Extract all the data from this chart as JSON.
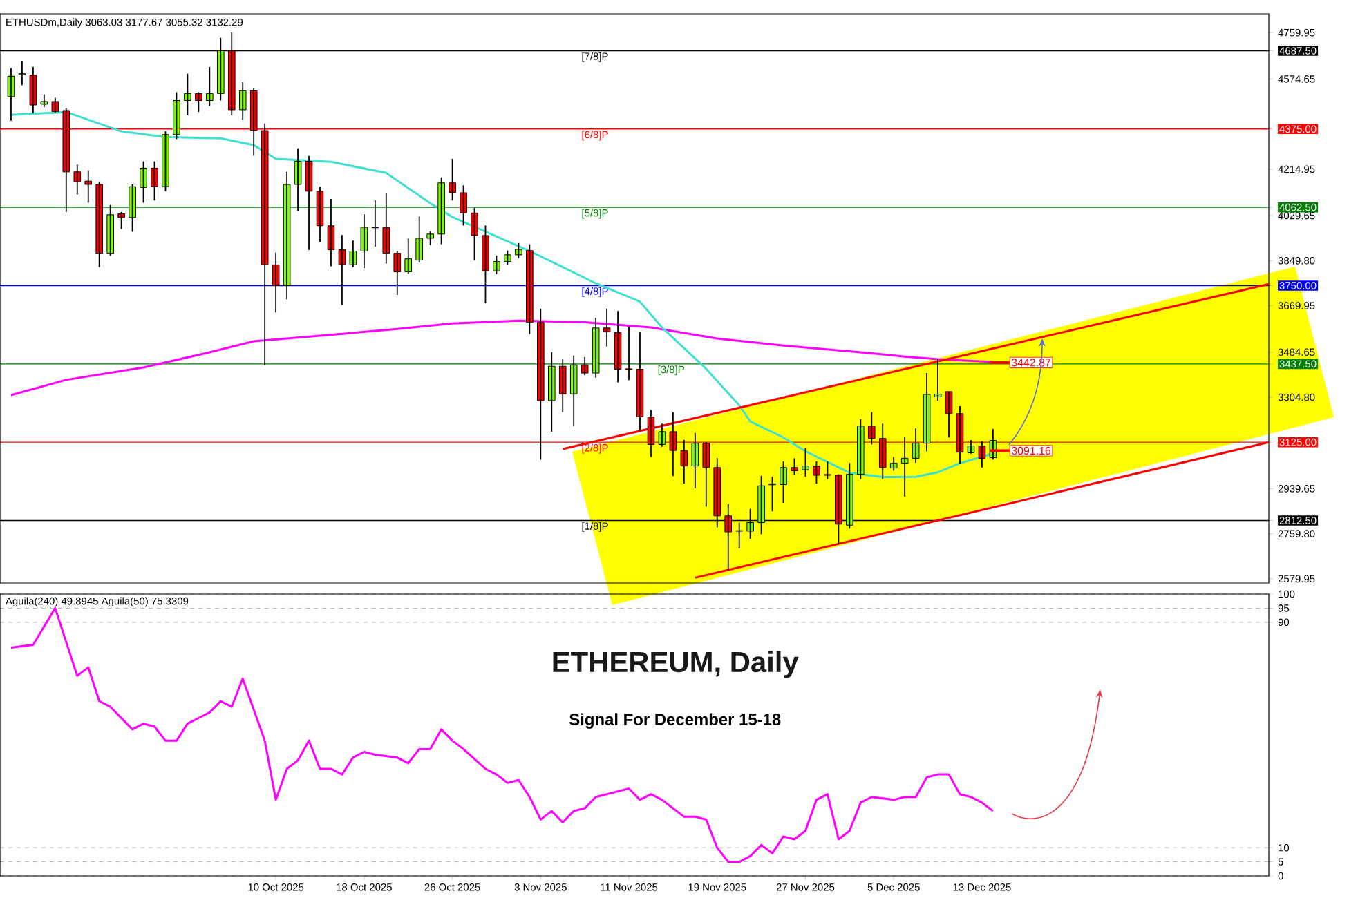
{
  "chart_data": [
    {
      "type": "candlestick",
      "annotations": [
        "ETHUSDm,Daily  3063.03 3177.67 3055.32 3132.29",
        {
          "text": "3442.87",
          "x": "2025-12-14",
          "y": 3442.87
        },
        {
          "text": "3091.16",
          "x": "2025-12-14",
          "y": 3091.16
        }
      ],
      "x": [
        "2025-09-16",
        "2025-09-17",
        "2025-09-18",
        "2025-09-19",
        "2025-09-20",
        "2025-09-21",
        "2025-09-22",
        "2025-09-23",
        "2025-09-24",
        "2025-09-25",
        "2025-09-26",
        "2025-09-27",
        "2025-09-28",
        "2025-09-29",
        "2025-09-30",
        "2025-10-01",
        "2025-10-02",
        "2025-10-03",
        "2025-10-04",
        "2025-10-05",
        "2025-10-06",
        "2025-10-07",
        "2025-10-08",
        "2025-10-09",
        "2025-10-10",
        "2025-10-11",
        "2025-10-12",
        "2025-10-13",
        "2025-10-14",
        "2025-10-15",
        "2025-10-16",
        "2025-10-17",
        "2025-10-18",
        "2025-10-19",
        "2025-10-20",
        "2025-10-21",
        "2025-10-22",
        "2025-10-23",
        "2025-10-24",
        "2025-10-25",
        "2025-10-26",
        "2025-10-27",
        "2025-10-28",
        "2025-10-29",
        "2025-10-30",
        "2025-10-31",
        "2025-11-01",
        "2025-11-02",
        "2025-11-03",
        "2025-11-04",
        "2025-11-05",
        "2025-11-06",
        "2025-11-07",
        "2025-11-08",
        "2025-11-09",
        "2025-11-10",
        "2025-11-11",
        "2025-11-12",
        "2025-11-13",
        "2025-11-14",
        "2025-11-15",
        "2025-11-16",
        "2025-11-17",
        "2025-11-18",
        "2025-11-19",
        "2025-11-20",
        "2025-11-21",
        "2025-11-22",
        "2025-11-23",
        "2025-11-24",
        "2025-11-25",
        "2025-11-26",
        "2025-11-27",
        "2025-11-28",
        "2025-11-29",
        "2025-11-30",
        "2025-12-01",
        "2025-12-02",
        "2025-12-03",
        "2025-12-04",
        "2025-12-05",
        "2025-12-06",
        "2025-12-07",
        "2025-12-08",
        "2025-12-09",
        "2025-12-10",
        "2025-12-11",
        "2025-12-12",
        "2025-12-13",
        "2025-12-14"
      ],
      "ohlc": [
        [
          4504,
          4618,
          4408,
          4586
        ],
        [
          4592,
          4647,
          4550,
          4596
        ],
        [
          4590,
          4623,
          4439,
          4471
        ],
        [
          4474,
          4513,
          4463,
          4485
        ],
        [
          4485,
          4500,
          4439,
          4445
        ],
        [
          4449,
          4458,
          4044,
          4204
        ],
        [
          4204,
          4233,
          4114,
          4164
        ],
        [
          4167,
          4210,
          4081,
          4154
        ],
        [
          4154,
          4163,
          3824,
          3879
        ],
        [
          3879,
          4072,
          3869,
          4033
        ],
        [
          4037,
          4044,
          3976,
          4022
        ],
        [
          4022,
          4154,
          3965,
          4145
        ],
        [
          4142,
          4246,
          4081,
          4219
        ],
        [
          4219,
          4246,
          4090,
          4145
        ],
        [
          4145,
          4366,
          4127,
          4353
        ],
        [
          4353,
          4522,
          4335,
          4489
        ],
        [
          4489,
          4596,
          4430,
          4517
        ],
        [
          4517,
          4522,
          4443,
          4489
        ],
        [
          4489,
          4623,
          4467,
          4517
        ],
        [
          4517,
          4739,
          4489,
          4688
        ],
        [
          4688,
          4761,
          4430,
          4452
        ],
        [
          4452,
          4563,
          4412,
          4528
        ],
        [
          4528,
          4537,
          4268,
          4369
        ],
        [
          4369,
          4397,
          3432,
          3833
        ],
        [
          3833,
          3882,
          3643,
          3750
        ],
        [
          3750,
          4204,
          3695,
          4154
        ],
        [
          4154,
          4298,
          4048,
          4246
        ],
        [
          4246,
          4268,
          3893,
          4127
        ],
        [
          4127,
          4145,
          3925,
          3989
        ],
        [
          3989,
          4096,
          3827,
          3893
        ],
        [
          3893,
          3952,
          3673,
          3833
        ],
        [
          3833,
          3930,
          3824,
          3888
        ],
        [
          3888,
          4035,
          3820,
          3983
        ],
        [
          3983,
          4090,
          3906,
          3981
        ],
        [
          3983,
          4118,
          3838,
          3879
        ],
        [
          3879,
          3888,
          3713,
          3805
        ],
        [
          3805,
          3938,
          3796,
          3857
        ],
        [
          3852,
          4026,
          3842,
          3939
        ],
        [
          3939,
          3967,
          3912,
          3956
        ],
        [
          3956,
          4182,
          3915,
          4160
        ],
        [
          4160,
          4256,
          4090,
          4121
        ],
        [
          4121,
          4150,
          3990,
          4040
        ],
        [
          4040,
          4060,
          3851,
          3950
        ],
        [
          3950,
          3990,
          3680,
          3809
        ],
        [
          3809,
          3870,
          3796,
          3846
        ],
        [
          3846,
          3890,
          3833,
          3873
        ],
        [
          3873,
          3920,
          3860,
          3895
        ],
        [
          3890,
          3915,
          3557,
          3603
        ],
        [
          3603,
          3658,
          3055,
          3291
        ],
        [
          3291,
          3484,
          3167,
          3428
        ],
        [
          3428,
          3456,
          3245,
          3318
        ],
        [
          3318,
          3471,
          3190,
          3434
        ],
        [
          3434,
          3465,
          3392,
          3401
        ],
        [
          3401,
          3621,
          3383,
          3581
        ],
        [
          3581,
          3658,
          3507,
          3566
        ],
        [
          3563,
          3649,
          3364,
          3416
        ],
        [
          3418,
          3585,
          3373,
          3414
        ],
        [
          3416,
          3566,
          3171,
          3226
        ],
        [
          3226,
          3254,
          3066,
          3116
        ],
        [
          3116,
          3199,
          3107,
          3167
        ],
        [
          3167,
          3245,
          2990,
          3092
        ],
        [
          3092,
          3134,
          2960,
          3030
        ],
        [
          3030,
          3162,
          2941,
          3121
        ],
        [
          3121,
          3125,
          2868,
          3024
        ],
        [
          3024,
          3061,
          2785,
          2831
        ],
        [
          2831,
          2877,
          2614,
          2767
        ],
        [
          2772,
          2804,
          2702,
          2770
        ],
        [
          2770,
          2859,
          2739,
          2804
        ],
        [
          2804,
          2991,
          2758,
          2951
        ],
        [
          2955,
          2987,
          2849,
          2959
        ],
        [
          2956,
          3048,
          2883,
          3024
        ],
        [
          3024,
          3061,
          2993,
          3011
        ],
        [
          3015,
          3103,
          2987,
          3030
        ],
        [
          3030,
          3048,
          2960,
          2993
        ],
        [
          2996,
          3048,
          2978,
          2993
        ],
        [
          2993,
          2997,
          2717,
          2798
        ],
        [
          2794,
          3042,
          2780,
          2997
        ],
        [
          2997,
          3217,
          2978,
          3190
        ],
        [
          3190,
          3245,
          3116,
          3140
        ],
        [
          3140,
          3199,
          2978,
          3024
        ],
        [
          3022,
          3066,
          3011,
          3041
        ],
        [
          3041,
          3147,
          2908,
          3061
        ],
        [
          3061,
          3180,
          3043,
          3121
        ],
        [
          3121,
          3401,
          3088,
          3316
        ],
        [
          3306,
          3456,
          3291,
          3317
        ],
        [
          3327,
          3327,
          3144,
          3239
        ],
        [
          3239,
          3269,
          3037,
          3085
        ],
        [
          3083,
          3134,
          3079,
          3110
        ],
        [
          3110,
          3129,
          3024,
          3061
        ],
        [
          3063.03,
          3177.67,
          3055.32,
          3132.29
        ]
      ],
      "colors": [
        "#7cfc00",
        "#7cfc00",
        "#ff0000",
        "#7cfc00",
        "#ff0000",
        "#ff0000",
        "#ff0000",
        "#ff0000",
        "#ff0000",
        "#7cfc00",
        "#ff0000",
        "#7cfc00",
        "#7cfc00",
        "#ff0000",
        "#7cfc00",
        "#7cfc00",
        "#7cfc00",
        "#ff0000",
        "#7cfc00",
        "#7cfc00",
        "#ff0000",
        "#7cfc00",
        "#ff0000",
        "#ff0000",
        "#ff0000",
        "#7cfc00",
        "#7cfc00",
        "#ff0000",
        "#ff0000",
        "#ff0000",
        "#ff0000",
        "#7cfc00",
        "#7cfc00",
        "#ff0000",
        "#ff0000",
        "#ff0000",
        "#7cfc00",
        "#7cfc00",
        "#7cfc00",
        "#7cfc00",
        "#ff0000",
        "#ff0000",
        "#ff0000",
        "#ff0000",
        "#7cfc00",
        "#7cfc00",
        "#7cfc00",
        "#ff0000",
        "#ff0000",
        "#7cfc00",
        "#ff0000",
        "#7cfc00",
        "#ff0000",
        "#7cfc00",
        "#ff0000",
        "#ff0000",
        "#ff0000",
        "#ff0000",
        "#ff0000",
        "#7cfc00",
        "#ff0000",
        "#ff0000",
        "#7cfc00",
        "#ff0000",
        "#ff0000",
        "#ff0000",
        "#ff0000",
        "#7cfc00",
        "#7cfc00",
        "#7cfc00",
        "#7cfc00",
        "#ff0000",
        "#7cfc00",
        "#ff0000",
        "#ff0000",
        "#ff0000",
        "#7cfc00",
        "#7cfc00",
        "#ff0000",
        "#ff0000",
        "#7cfc00",
        "#7cfc00",
        "#7cfc00",
        "#7cfc00",
        "#7cfc00",
        "#ff0000",
        "#ff0000",
        "#7cfc00",
        "#ff0000",
        "#7cfc00"
      ],
      "series": [
        {
          "type": "line",
          "color": "#ff00ff",
          "x": [
            "2025-09-16",
            "2025-09-21",
            "2025-09-28",
            "2025-10-04",
            "2025-10-08",
            "2025-10-14",
            "2025-10-21",
            "2025-10-26",
            "2025-11-01",
            "2025-11-07",
            "2025-11-13",
            "2025-11-19",
            "2025-11-25",
            "2025-12-02",
            "2025-12-06",
            "2025-12-09",
            "2025-12-14"
          ],
          "values": [
            3313,
            3374,
            3423,
            3484,
            3528,
            3550,
            3577,
            3599,
            3610,
            3604,
            3583,
            3539,
            3511,
            3484,
            3467,
            3456,
            3445
          ]
        },
        {
          "type": "line",
          "color": "#40e0d0",
          "x": [
            "2025-09-16",
            "2025-09-21",
            "2025-09-26",
            "2025-09-30",
            "2025-10-05",
            "2025-10-08",
            "2025-10-10",
            "2025-10-15",
            "2025-10-20",
            "2025-10-24",
            "2025-10-26",
            "2025-11-02",
            "2025-11-05",
            "2025-11-08",
            "2025-11-12",
            "2025-11-14",
            "2025-11-18",
            "2025-11-21",
            "2025-11-22",
            "2025-11-25",
            "2025-11-27",
            "2025-12-01",
            "2025-12-04",
            "2025-12-07",
            "2025-12-09",
            "2025-12-11",
            "2025-12-14"
          ],
          "values": [
            4432,
            4443,
            4366,
            4343,
            4338,
            4311,
            4256,
            4244,
            4200,
            4079,
            4024,
            3888,
            3824,
            3759,
            3686,
            3583,
            3418,
            3272,
            3208,
            3144,
            3089,
            3003,
            2986,
            2987,
            3005,
            3041,
            3080
          ]
        },
        {
          "type": "line",
          "color": "#ff0000",
          "x": [
            "2025-11-05",
            "2026-01-08"
          ],
          "values": [
            3098,
            3756
          ]
        },
        {
          "type": "line",
          "color": "#ff0000",
          "x": [
            "2025-11-17",
            "2026-01-08"
          ],
          "values": [
            2584,
            3125
          ]
        }
      ],
      "xlim": [
        "2025-09-15",
        "2026-01-08"
      ],
      "ylim": [
        2563,
        4835
      ],
      "yticks": [
        2579.95,
        {
          "value": 2759.8,
          "label": "2759.80"
        },
        {
          "value": 2812.5,
          "label": "2812.50"
        },
        2939.65,
        {
          "value": 3125,
          "label": "3125.00"
        },
        {
          "value": 3304.8,
          "label": "3304.80"
        },
        {
          "value": 3437.5,
          "label": "3437.50"
        },
        3484.65,
        3669.95,
        {
          "value": 3750,
          "label": "3750.00"
        },
        {
          "value": 3849.8,
          "label": "3849.80"
        },
        4029.65,
        {
          "value": 4062.5,
          "label": "4062.50"
        },
        4214.95,
        {
          "value": 4375,
          "label": "4375.00"
        },
        4574.65,
        {
          "value": 4687.5,
          "label": "4687.50"
        },
        4759.95
      ],
      "ref_lines": [
        {
          "axis": "y",
          "value": 4687.5,
          "label": "[7/8]P",
          "color": "#000000"
        },
        {
          "axis": "y",
          "value": 4375,
          "label": "[6/8]P",
          "color": "#ff0000"
        },
        {
          "axis": "y",
          "value": 4062.5,
          "label": "[5/8]P",
          "color": "#008000"
        },
        {
          "axis": "y",
          "value": 3750,
          "label": "[4/8]P",
          "color": "#0000ff"
        },
        {
          "axis": "y",
          "value": 3437.5,
          "label": "[3/8]P",
          "color": "#008000"
        },
        {
          "axis": "y",
          "value": 3125,
          "label": "[2/8]P",
          "color": "#ff0000"
        },
        {
          "axis": "y",
          "value": 2812.5,
          "label": "[1/8]P",
          "color": "#000000"
        }
      ],
      "tick_labels": "y"
    },
    {
      "type": "line",
      "title": "ETHEREUM, Daily",
      "subtitle": "Signal For December 15-18",
      "annotations": [
        "Aguila(240) 49.8945   Aguila(50) 75.3309"
      ],
      "series": [
        {
          "color": "#ff00ff",
          "x": [
            "2025-09-16",
            "2025-09-18",
            "2025-09-20",
            "2025-09-22",
            "2025-09-23",
            "2025-09-24",
            "2025-09-25",
            "2025-09-27",
            "2025-09-28",
            "2025-09-29",
            "2025-09-30",
            "2025-10-01",
            "2025-10-02",
            "2025-10-03",
            "2025-10-04",
            "2025-10-05",
            "2025-10-06",
            "2025-10-07",
            "2025-10-09",
            "2025-10-10",
            "2025-10-11",
            "2025-10-12",
            "2025-10-13",
            "2025-10-14",
            "2025-10-15",
            "2025-10-16",
            "2025-10-17",
            "2025-10-18",
            "2025-10-19",
            "2025-10-21",
            "2025-10-22",
            "2025-10-23",
            "2025-10-24",
            "2025-10-25",
            "2025-10-26",
            "2025-10-27",
            "2025-10-29",
            "2025-10-30",
            "2025-10-31",
            "2025-11-01",
            "2025-11-02",
            "2025-11-03",
            "2025-11-04",
            "2025-11-05",
            "2025-11-06",
            "2025-11-07",
            "2025-11-08",
            "2025-11-10",
            "2025-11-11",
            "2025-11-12",
            "2025-11-13",
            "2025-11-14",
            "2025-11-15",
            "2025-11-16",
            "2025-11-17",
            "2025-11-18",
            "2025-11-19",
            "2025-11-20",
            "2025-11-21",
            "2025-11-22",
            "2025-11-23",
            "2025-11-24",
            "2025-11-25",
            "2025-11-26",
            "2025-11-27",
            "2025-11-28",
            "2025-11-29",
            "2025-11-30",
            "2025-12-01",
            "2025-12-02",
            "2025-12-03",
            "2025-12-05",
            "2025-12-06",
            "2025-12-07",
            "2025-12-08",
            "2025-12-09",
            "2025-12-10",
            "2025-12-11",
            "2025-12-12",
            "2025-12-13",
            "2025-12-14"
          ],
          "values": [
            81,
            82,
            95,
            71,
            74,
            62,
            60,
            52,
            54,
            53,
            48,
            48,
            54,
            56,
            58,
            62,
            60,
            70,
            48,
            27,
            38,
            41,
            48,
            38,
            38,
            36,
            42,
            44,
            43,
            42,
            40,
            45,
            45,
            52,
            48,
            45,
            38,
            36,
            33,
            34,
            28,
            20,
            23,
            19,
            23,
            24,
            28,
            30,
            31,
            27,
            29,
            27,
            24,
            21,
            21,
            20,
            10,
            5,
            5,
            7,
            11,
            8,
            14,
            13,
            16,
            27,
            29,
            13,
            16,
            26,
            28,
            27,
            28,
            28,
            35,
            36,
            36,
            29,
            28,
            26,
            23
          ]
        }
      ],
      "xlim": [
        "2025-09-15",
        "2026-01-08"
      ],
      "ylim": [
        0,
        100
      ],
      "xticks": [
        {
          "value": "2025-10-10",
          "label": "10 Oct 2025"
        },
        {
          "value": "2025-10-18",
          "label": "18 Oct 2025"
        },
        {
          "value": "2025-10-26",
          "label": "26 Oct 2025"
        },
        {
          "value": "2025-11-03",
          "label": "3 Nov 2025"
        },
        {
          "value": "2025-11-11",
          "label": "11 Nov 2025"
        },
        {
          "value": "2025-11-19",
          "label": "19 Nov 2025"
        },
        {
          "value": "2025-11-27",
          "label": "27 Nov 2025"
        },
        {
          "value": "2025-12-05",
          "label": "5 Dec 2025"
        },
        {
          "value": "2025-12-13",
          "label": "13 Dec 2025"
        }
      ],
      "yticks": [
        0,
        5,
        10,
        90,
        95,
        100
      ],
      "grid": "y"
    }
  ]
}
